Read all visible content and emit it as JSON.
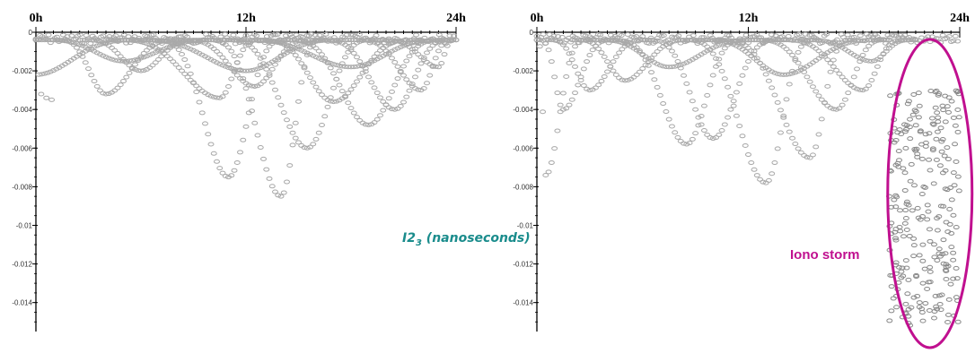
{
  "center_label": {
    "main": "I2",
    "sub": "3",
    "tail": " (nanoseconds)"
  },
  "annotation": {
    "text": "Iono storm",
    "color": "#c0108f"
  },
  "marker_color": "#a9a9a9",
  "chart_data": [
    {
      "type": "scatter",
      "x_ticks": [
        "0h",
        "12h",
        "24h"
      ],
      "xlim": [
        0,
        24
      ],
      "ylim": [
        -0.0155,
        0
      ],
      "y_ticks": [
        "0",
        "-0.002",
        "-0.004",
        "-0.006",
        "-0.008",
        "-0.01",
        "-0.012",
        "-0.014"
      ],
      "y_tick_values": [
        0,
        -0.002,
        -0.004,
        -0.006,
        -0.008,
        -0.01,
        -0.012,
        -0.014
      ],
      "arcs": [
        {
          "t0": 0.0,
          "t1": 6.5,
          "peak": 0.0,
          "depth": -0.0022
        },
        {
          "t0": 1.0,
          "t1": 8.5,
          "peak": 4.0,
          "depth": -0.0032
        },
        {
          "t0": 2.5,
          "t1": 9.5,
          "peak": 6.0,
          "depth": -0.002
        },
        {
          "t0": 4.0,
          "t1": 13.0,
          "peak": 10.5,
          "depth": -0.0034
        },
        {
          "t0": 6.5,
          "t1": 14.5,
          "peak": 11.0,
          "depth": -0.0075
        },
        {
          "t0": 8.0,
          "t1": 16.0,
          "peak": 12.5,
          "depth": -0.0028
        },
        {
          "t0": 9.5,
          "t1": 16.5,
          "peak": 14.0,
          "depth": -0.0085
        },
        {
          "t0": 10.5,
          "t1": 19.5,
          "peak": 15.5,
          "depth": -0.006
        },
        {
          "t0": 12.5,
          "t1": 22.0,
          "peak": 17.0,
          "depth": -0.0036
        },
        {
          "t0": 14.0,
          "t1": 23.5,
          "peak": 19.0,
          "depth": -0.0048
        },
        {
          "t0": 16.0,
          "t1": 24.0,
          "peak": 20.5,
          "depth": -0.004
        },
        {
          "t0": 18.0,
          "t1": 24.0,
          "peak": 22.0,
          "depth": -0.003
        },
        {
          "t0": 19.5,
          "t1": 24.0,
          "peak": 23.0,
          "depth": -0.0018
        },
        {
          "t0": 0.0,
          "t1": 11.0,
          "peak": 5.0,
          "depth": -0.0015
        },
        {
          "t0": 5.0,
          "t1": 18.0,
          "peak": 12.0,
          "depth": -0.002
        },
        {
          "t0": 11.0,
          "t1": 24.0,
          "peak": 18.0,
          "depth": -0.0018
        }
      ],
      "isolated": [
        [
          0.3,
          -0.0032
        ],
        [
          0.6,
          -0.0034
        ],
        [
          0.9,
          -0.0035
        ]
      ]
    },
    {
      "type": "scatter",
      "x_ticks": [
        "0h",
        "12h",
        "24h"
      ],
      "xlim": [
        0,
        24
      ],
      "ylim": [
        -0.0155,
        0
      ],
      "y_ticks": [
        "0",
        "-0.002",
        "-0.004",
        "-0.006",
        "-0.008",
        "-0.01",
        "-0.012",
        "-0.014"
      ],
      "y_tick_values": [
        0,
        -0.002,
        -0.004,
        -0.006,
        -0.008,
        -0.01,
        -0.012,
        -0.014
      ],
      "arcs": [
        {
          "t0": 0.0,
          "t1": 3.0,
          "peak": 0.5,
          "depth": -0.0074
        },
        {
          "t0": 0.0,
          "t1": 4.5,
          "peak": 1.5,
          "depth": -0.004
        },
        {
          "t0": 0.5,
          "t1": 6.5,
          "peak": 3.0,
          "depth": -0.003
        },
        {
          "t0": 2.0,
          "t1": 9.0,
          "peak": 5.0,
          "depth": -0.0025
        },
        {
          "t0": 4.0,
          "t1": 12.0,
          "peak": 8.5,
          "depth": -0.0058
        },
        {
          "t0": 6.0,
          "t1": 14.0,
          "peak": 10.0,
          "depth": -0.0055
        },
        {
          "t0": 8.0,
          "t1": 16.0,
          "peak": 13.0,
          "depth": -0.0078
        },
        {
          "t0": 10.0,
          "t1": 18.0,
          "peak": 15.5,
          "depth": -0.0065
        },
        {
          "t0": 12.0,
          "t1": 20.0,
          "peak": 17.0,
          "depth": -0.004
        },
        {
          "t0": 13.5,
          "t1": 21.0,
          "peak": 18.5,
          "depth": -0.003
        },
        {
          "t0": 15.0,
          "t1": 21.5,
          "peak": 19.0,
          "depth": -0.0015
        },
        {
          "t0": 3.0,
          "t1": 13.0,
          "peak": 7.5,
          "depth": -0.0018
        },
        {
          "t0": 9.0,
          "t1": 20.0,
          "peak": 14.0,
          "depth": -0.0022
        }
      ],
      "isolated": [],
      "storm": {
        "t_start": 20.0,
        "t_end": 24.0,
        "y_top": -0.003,
        "y_bottom": -0.0152
      }
    }
  ]
}
